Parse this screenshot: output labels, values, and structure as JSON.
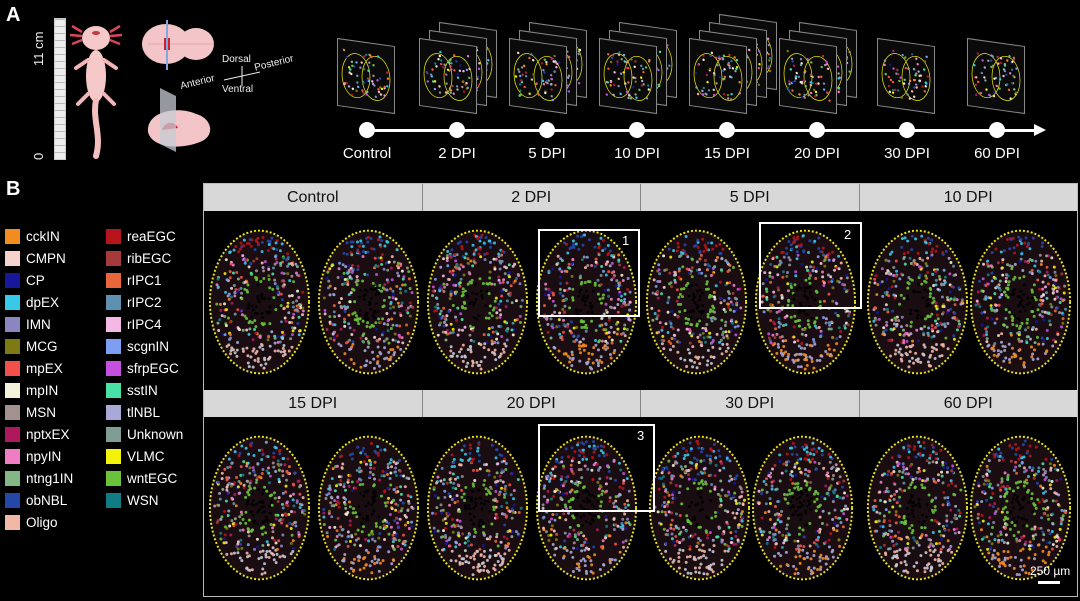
{
  "panels": {
    "a_label": "A",
    "b_label": "B"
  },
  "ruler": {
    "top_label": "11 cm",
    "bottom_label": "0"
  },
  "orientation": {
    "dorsal": "Dorsal",
    "ventral": "Ventral",
    "anterior": "Anterior",
    "posterior": "Posterior"
  },
  "timepoints": [
    "Control",
    "2 DPI",
    "5 DPI",
    "10 DPI",
    "15 DPI",
    "20 DPI",
    "30 DPI",
    "60 DPI"
  ],
  "grid": {
    "row1": [
      "Control",
      "2 DPI",
      "5 DPI",
      "10 DPI"
    ],
    "row2": [
      "15 DPI",
      "20 DPI",
      "30 DPI",
      "60 DPI"
    ],
    "roi_labels": [
      "1",
      "2",
      "3"
    ],
    "scale_bar": "250 µm"
  },
  "legend_col1": [
    {
      "name": "cckIN",
      "color": "#f28c1e"
    },
    {
      "name": "CMPN",
      "color": "#f6d2cf"
    },
    {
      "name": "CP",
      "color": "#16179a"
    },
    {
      "name": "dpEX",
      "color": "#36c9e8"
    },
    {
      "name": "IMN",
      "color": "#8a86bf"
    },
    {
      "name": "MCG",
      "color": "#7c7a10"
    },
    {
      "name": "mpEX",
      "color": "#f2504a"
    },
    {
      "name": "mpIN",
      "color": "#f4f2d8"
    },
    {
      "name": "MSN",
      "color": "#a3918f"
    },
    {
      "name": "nptxEX",
      "color": "#b0185e"
    },
    {
      "name": "npyIN",
      "color": "#f07cc4"
    },
    {
      "name": "ntng1IN",
      "color": "#83b886"
    },
    {
      "name": "obNBL",
      "color": "#2447a8"
    },
    {
      "name": "Oligo",
      "color": "#f3b7a8"
    }
  ],
  "legend_col2": [
    {
      "name": "reaEGC",
      "color": "#b5141a"
    },
    {
      "name": "ribEGC",
      "color": "#a53a3a"
    },
    {
      "name": "rIPC1",
      "color": "#e8663a"
    },
    {
      "name": "rIPC2",
      "color": "#5d8fb0"
    },
    {
      "name": "rIPC4",
      "color": "#f3b8e6"
    },
    {
      "name": "scgnIN",
      "color": "#7c9ff2"
    },
    {
      "name": "sfrpEGC",
      "color": "#c54fe0"
    },
    {
      "name": "sstIN",
      "color": "#49e2a6"
    },
    {
      "name": "tlNBL",
      "color": "#a9a8d8"
    },
    {
      "name": "Unknown",
      "color": "#7f9c95"
    },
    {
      "name": "VLMC",
      "color": "#f3f20a"
    },
    {
      "name": "wntEGC",
      "color": "#69c23a"
    },
    {
      "name": "WSN",
      "color": "#127c84"
    }
  ]
}
